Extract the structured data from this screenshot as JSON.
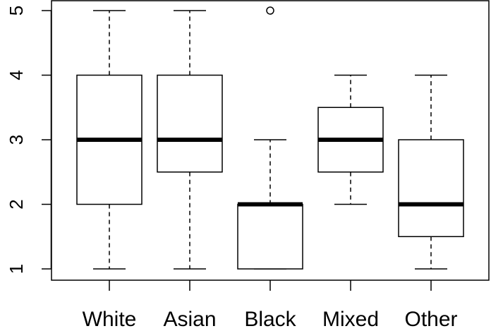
{
  "chart_data": {
    "type": "boxplot",
    "title": "",
    "xlabel": "",
    "ylabel": "",
    "ylim": [
      0.75,
      5.1
    ],
    "yticks": [
      "1",
      "2",
      "3",
      "4",
      "5"
    ],
    "categories": [
      "White",
      "Asian",
      "Black",
      "Mixed",
      "Other"
    ],
    "boxes": [
      {
        "category": "White",
        "whisker_low": 1,
        "q1": 2,
        "median": 3,
        "q3": 4,
        "whisker_high": 5,
        "outliers": []
      },
      {
        "category": "Asian",
        "whisker_low": 1,
        "q1": 2.5,
        "median": 3,
        "q3": 4,
        "whisker_high": 5,
        "outliers": []
      },
      {
        "category": "Black",
        "whisker_low": 1,
        "q1": 1,
        "median": 2,
        "q3": 2,
        "whisker_high": 3,
        "outliers": [
          5
        ]
      },
      {
        "category": "Mixed",
        "whisker_low": 2,
        "q1": 2.5,
        "median": 3,
        "q3": 3.5,
        "whisker_high": 4,
        "outliers": []
      },
      {
        "category": "Other",
        "whisker_low": 1,
        "q1": 1.5,
        "median": 2,
        "q3": 3,
        "whisker_high": 4,
        "outliers": []
      }
    ],
    "grid": false,
    "legend": "none"
  }
}
